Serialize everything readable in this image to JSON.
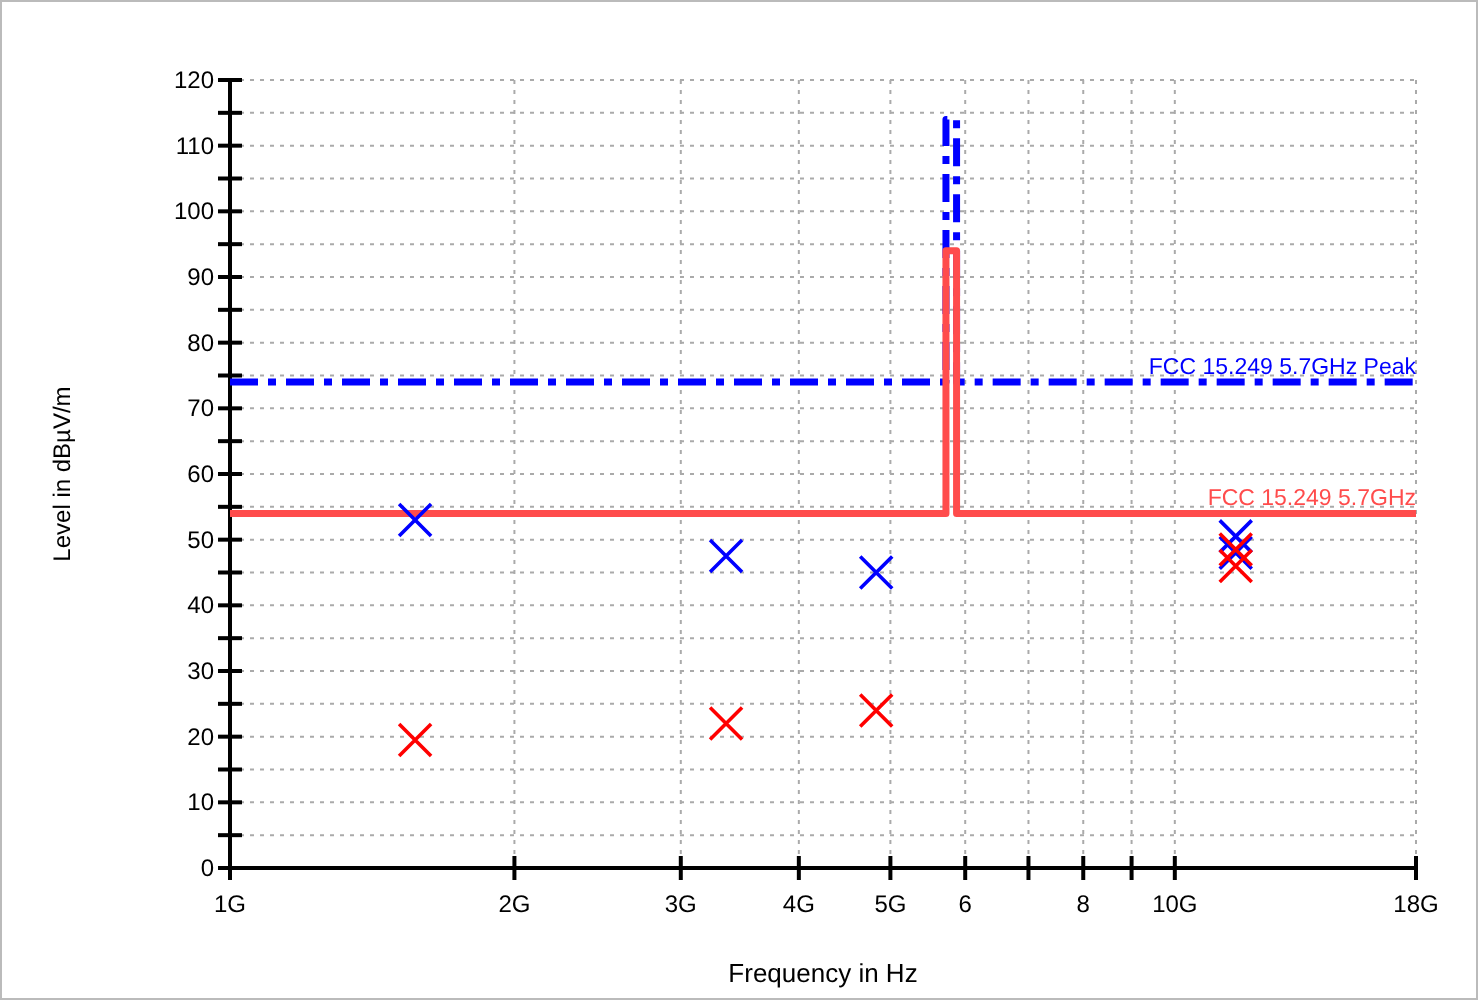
{
  "chart_data": {
    "type": "scatter",
    "xlabel": "Frequency in Hz",
    "ylabel": "Level in dBµV/m",
    "log": "x",
    "grid": true,
    "marker": "cross",
    "xlim": [
      1,
      18
    ],
    "ylim": [
      0,
      120
    ],
    "xticks": [
      {
        "value": 1,
        "label": "1G"
      },
      {
        "value": 2,
        "label": "2G"
      },
      {
        "value": 3,
        "label": "3G"
      },
      {
        "value": 4,
        "label": "4G"
      },
      {
        "value": 5,
        "label": "5G"
      },
      {
        "value": 6,
        "label": "6"
      },
      {
        "value": 7,
        "label": null
      },
      {
        "value": 8,
        "label": "8"
      },
      {
        "value": 9,
        "label": null
      },
      {
        "value": 10,
        "label": "10G"
      },
      {
        "value": 18,
        "label": "18G"
      }
    ],
    "yticks": [
      0,
      {
        "value": 5,
        "label": null
      },
      10,
      {
        "value": 15,
        "label": null
      },
      20,
      {
        "value": 25,
        "label": null
      },
      30,
      {
        "value": 35,
        "label": null
      },
      40,
      {
        "value": 45,
        "label": null
      },
      50,
      {
        "value": 55,
        "label": null
      },
      60,
      {
        "value": 65,
        "label": null
      },
      70,
      {
        "value": 75,
        "label": null
      },
      80,
      {
        "value": 85,
        "label": null
      },
      90,
      {
        "value": 95,
        "label": null
      },
      100,
      {
        "value": 105,
        "label": null
      },
      110,
      {
        "value": 115,
        "label": null
      },
      120
    ],
    "series": [
      {
        "type": "line",
        "name": "FCC 15.249 5.7GHz Peak",
        "color": "#0000ff",
        "line_style": "dashed",
        "marker": "none",
        "x": [
          1,
          5.725,
          5.725,
          5.875,
          5.875,
          18
        ],
        "values": [
          74,
          74,
          114,
          114,
          74,
          74
        ]
      },
      {
        "type": "line",
        "name": "FCC 15.249 5.7GHz",
        "color": "#ff4c4c",
        "line_style": "solid",
        "marker": "none",
        "x": [
          1,
          5.725,
          5.725,
          5.875,
          5.875,
          18
        ],
        "values": [
          54,
          54,
          94,
          94,
          54,
          54
        ]
      },
      {
        "color": "#0000ff",
        "x": [
          1.57,
          3.35,
          4.83,
          11.6,
          11.6
        ],
        "values": [
          53,
          47.5,
          45,
          50.5,
          48
        ]
      },
      {
        "color": "#ff0000",
        "x": [
          1.57,
          3.35,
          4.83,
          11.6,
          11.6
        ],
        "values": [
          19.5,
          22,
          24,
          48.5,
          46
        ]
      }
    ]
  }
}
